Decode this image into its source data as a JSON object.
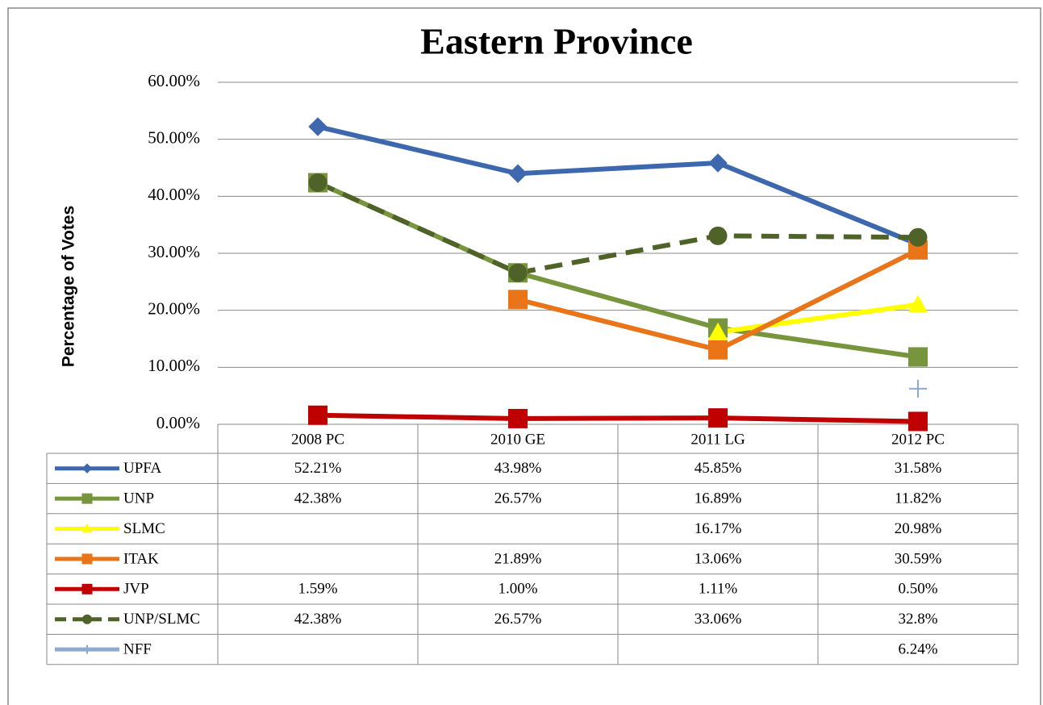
{
  "chart_data": {
    "type": "line",
    "title": "Eastern Province",
    "y_label": "Percentage of Votes",
    "categories": [
      "2008 PC",
      "2010 GE",
      "2011 LG",
      "2012 PC"
    ],
    "ylim": [
      0,
      60
    ],
    "yticks": [
      {
        "value": 0,
        "label": "0.00%"
      },
      {
        "value": 10,
        "label": "10.00%"
      },
      {
        "value": 20,
        "label": "20.00%"
      },
      {
        "value": 30,
        "label": "30.00%"
      },
      {
        "value": 40,
        "label": "40.00%"
      },
      {
        "value": 50,
        "label": "50.00%"
      },
      {
        "value": 60,
        "label": "60.00%"
      }
    ],
    "grid": true,
    "series": [
      {
        "name": "UPFA",
        "color": "#3d68ad",
        "marker": "diamond",
        "values": [
          52.21,
          43.98,
          45.85,
          31.58
        ],
        "value_labels": [
          "52.21%",
          "43.98%",
          "45.85%",
          "31.58%"
        ]
      },
      {
        "name": "UNP",
        "color": "#77953d",
        "marker": "square",
        "values": [
          42.38,
          26.57,
          16.89,
          11.82
        ],
        "value_labels": [
          "42.38%",
          "26.57%",
          "16.89%",
          "11.82%"
        ]
      },
      {
        "name": "SLMC",
        "color": "#ffff00",
        "marker": "triangle",
        "values": [
          null,
          null,
          16.17,
          20.98
        ],
        "value_labels": [
          null,
          null,
          "16.17%",
          "20.98%"
        ]
      },
      {
        "name": "ITAK",
        "color": "#ea7418",
        "marker": "square",
        "values": [
          null,
          21.89,
          13.06,
          30.59
        ],
        "value_labels": [
          null,
          "21.89%",
          "13.06%",
          "30.59%"
        ]
      },
      {
        "name": "JVP",
        "color": "#c00000",
        "marker": "square",
        "values": [
          1.59,
          1.0,
          1.11,
          0.5
        ],
        "value_labels": [
          "1.59%",
          "1.00%",
          "1.11%",
          "0.50%"
        ]
      },
      {
        "name": "UNP/SLMC",
        "color": "#4f6228",
        "marker": "circle",
        "dashed": true,
        "values": [
          42.38,
          26.57,
          33.06,
          32.8
        ],
        "value_labels": [
          "42.38%",
          "26.57%",
          "33.06%",
          "32.8%"
        ]
      },
      {
        "name": "NFF",
        "color": "#8eaad3",
        "marker": "plus",
        "values": [
          null,
          null,
          null,
          6.24
        ],
        "value_labels": [
          null,
          null,
          null,
          "6.24%"
        ]
      }
    ]
  }
}
